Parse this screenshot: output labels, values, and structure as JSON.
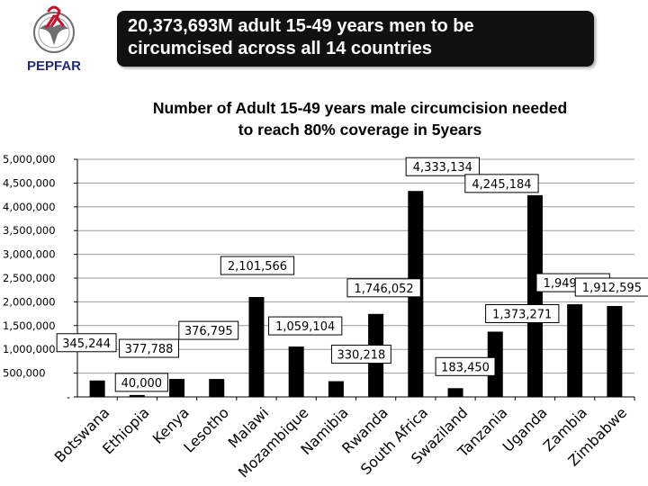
{
  "logo": {
    "text": "PEPFAR",
    "icon": "eagle-seal-ribbon-icon"
  },
  "banner": {
    "line1": "20,373,693M adult 15-49 years men to be",
    "line2": "circumcised across all 14 countries"
  },
  "chart_data": {
    "type": "bar",
    "title_line1": "Number of Adult 15-49 years male circumcision needed",
    "title_line2": "to reach 80% coverage in 5years",
    "categories": [
      "Botswana",
      "Ethiopia",
      "Kenya",
      "Lesotho",
      "Malawi",
      "Mozambique",
      "Namibia",
      "Rwanda",
      "South Africa",
      "Swaziland",
      "Tanzania",
      "Uganda",
      "Zambia",
      "Zimbabwe"
    ],
    "values": [
      345244,
      40000,
      377788,
      376795,
      2101566,
      1059104,
      330218,
      1746052,
      4333134,
      183450,
      1373271,
      4245184,
      1949292,
      1912595
    ],
    "data_labels": [
      "345,244",
      "40,000",
      "377,788",
      "376,795",
      "2,101,566",
      "1,059,104",
      "330,218",
      "1,746,052",
      "4,333,134",
      "183,450",
      "1,373,271",
      "4,245,184",
      "1,949,292",
      "1,912,595"
    ],
    "y_ticks": [
      0,
      500000,
      1000000,
      1500000,
      2000000,
      2500000,
      3000000,
      3500000,
      4000000,
      4500000,
      5000000
    ],
    "y_tick_labels": [
      "-",
      "500,000",
      "1,000,000",
      "1,500,000",
      "2,000,000",
      "2,500,000",
      "3,000,000",
      "3,500,000",
      "4,000,000",
      "4,500,000",
      "5,000,000"
    ],
    "ylim": [
      0,
      5000000
    ],
    "grid": true,
    "legend": "none",
    "bar_color": "#000000",
    "grid_color": "#9a9a9a"
  }
}
